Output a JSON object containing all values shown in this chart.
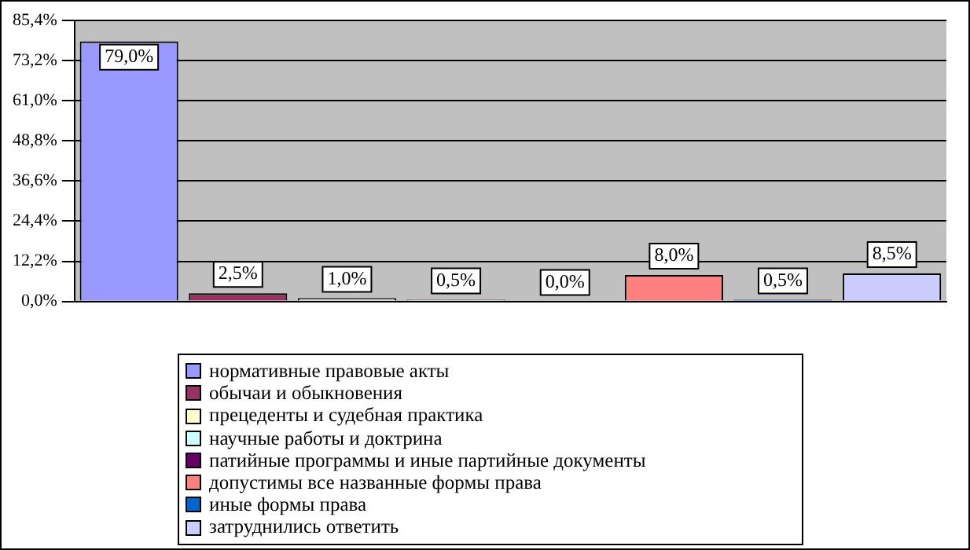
{
  "chart_data": {
    "type": "bar",
    "categories": [
      null,
      null,
      null,
      null,
      null,
      null,
      null,
      null
    ],
    "series": [
      {
        "name": "нормативные правовые акты",
        "color": "#9999ff",
        "values": [
          79.0,
          null,
          null,
          null,
          null,
          null,
          null,
          null
        ],
        "value_labels": [
          "79,0%",
          null,
          null,
          null,
          null,
          null,
          null,
          null
        ]
      },
      {
        "name": "обычаи и обыкновения",
        "color": "#993366",
        "values": [
          null,
          2.5,
          null,
          null,
          null,
          null,
          null,
          null
        ],
        "value_labels": [
          null,
          "2,5%",
          null,
          null,
          null,
          null,
          null,
          null
        ]
      },
      {
        "name": "прецеденты и судебная практика",
        "color": "#ffffcc",
        "values": [
          null,
          null,
          1.0,
          null,
          null,
          null,
          null,
          null
        ],
        "value_labels": [
          null,
          null,
          "1,0%",
          null,
          null,
          null,
          null,
          null
        ]
      },
      {
        "name": "научные работы и доктрина",
        "color": "#ccffff",
        "values": [
          null,
          null,
          null,
          0.5,
          null,
          null,
          null,
          null
        ],
        "value_labels": [
          null,
          null,
          null,
          "0,5%",
          null,
          null,
          null,
          null
        ]
      },
      {
        "name": "патийные программы и иные партийные документы",
        "color": "#660066",
        "values": [
          null,
          null,
          null,
          null,
          0.0,
          null,
          null,
          null
        ],
        "value_labels": [
          null,
          null,
          null,
          null,
          "0,0%",
          null,
          null,
          null
        ]
      },
      {
        "name": "допустимы все названные формы права",
        "color": "#ff8080",
        "values": [
          null,
          null,
          null,
          null,
          null,
          8.0,
          null,
          null
        ],
        "value_labels": [
          null,
          null,
          null,
          null,
          null,
          "8,0%",
          null,
          null
        ]
      },
      {
        "name": "иные формы права",
        "color": "#0066cc",
        "values": [
          null,
          null,
          null,
          null,
          null,
          null,
          0.5,
          null
        ],
        "value_labels": [
          null,
          null,
          null,
          null,
          null,
          null,
          "0,5%",
          null
        ]
      },
      {
        "name": "затруднились ответить",
        "color": "#ccccff",
        "values": [
          null,
          null,
          null,
          null,
          null,
          null,
          null,
          8.5
        ],
        "value_labels": [
          null,
          null,
          null,
          null,
          null,
          null,
          null,
          "8,5%"
        ]
      }
    ],
    "ylim": [
      0,
      85.4
    ],
    "yticks": [
      {
        "value": 0,
        "label": "0,0%"
      },
      {
        "value": 12.2,
        "label": "12,2%"
      },
      {
        "value": 24.4,
        "label": "24,4%"
      },
      {
        "value": 36.6,
        "label": "36,6%"
      },
      {
        "value": 48.8,
        "label": "48,8%"
      },
      {
        "value": 61.0,
        "label": "61,0%"
      },
      {
        "value": 73.2,
        "label": "73,2%"
      },
      {
        "value": 85.4,
        "label": "85,4%"
      }
    ],
    "grid": "y",
    "legend": "bottom"
  }
}
